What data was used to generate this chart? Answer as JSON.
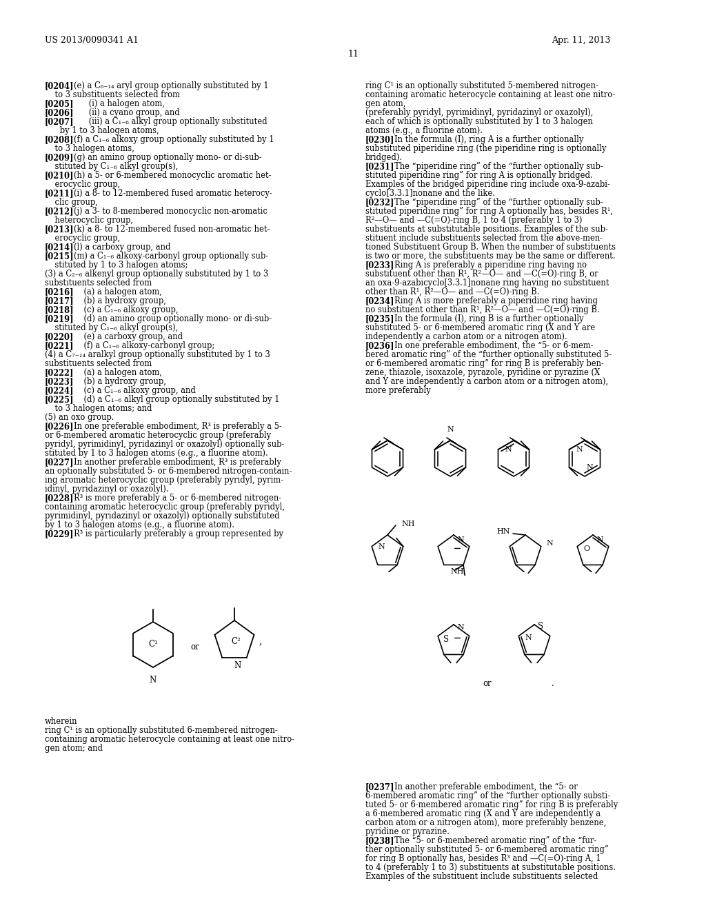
{
  "bg": "#ffffff",
  "header_left": "US 2013/0090341 A1",
  "header_right": "Apr. 11, 2013",
  "page_num": "11"
}
